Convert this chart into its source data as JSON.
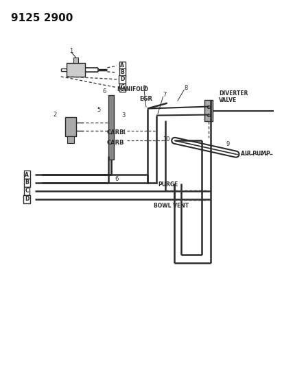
{
  "title": "9125 2900",
  "bg_color": "#ffffff",
  "line_color": "#2a2a2a",
  "dashed_color": "#444444",
  "fig_width": 4.11,
  "fig_height": 5.33,
  "dpi": 100,
  "labels": {
    "manifold": "MANIFOLD",
    "egr": "EGR",
    "carb1": "CARB",
    "carb2": "CARB",
    "purge": "PURGE",
    "bowl_vent": "BOWL VENT",
    "diverter_valve": "DIVERTER\nVALVE",
    "air_pump": "AIR PUMP"
  },
  "boxed_labels": [
    "A",
    "B",
    "D",
    "C"
  ]
}
